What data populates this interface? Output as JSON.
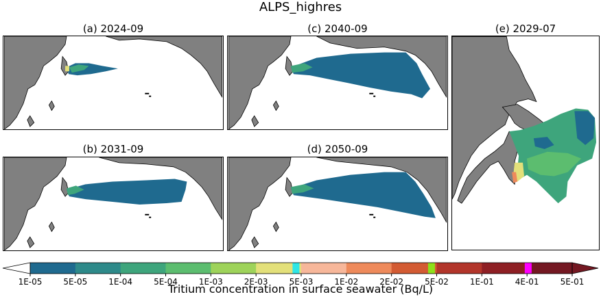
{
  "title": "ALPS_highres",
  "panels": [
    {
      "id": "a",
      "label": "(a) 2024-09"
    },
    {
      "id": "b",
      "label": "(b) 2031-09"
    },
    {
      "id": "c",
      "label": "(c) 2040-09"
    },
    {
      "id": "d",
      "label": "(d) 2050-09"
    },
    {
      "id": "e",
      "label": "(e) 2029-07"
    }
  ],
  "colorbar": {
    "label": "Tritium concentration in surface seawater (Bq/L)",
    "ticks": [
      "1E-05",
      "5E-05",
      "1E-04",
      "5E-04",
      "1E-03",
      "2E-03",
      "5E-03",
      "1E-02",
      "2E-02",
      "5E-02",
      "1E-01",
      "4E-01",
      "5E-01"
    ],
    "colors": [
      "#1f6a8f",
      "#2e8a8a",
      "#3ea57c",
      "#5cbd6f",
      "#9ed35a",
      "#e3e07a",
      "#f7b79a",
      "#ee8a5b",
      "#d35b33",
      "#b2352a",
      "#8e1f24",
      "#741822"
    ],
    "highlights": [
      "#2ee6e6",
      "#8ee01a",
      "#ff00ff"
    ],
    "extend": "both"
  },
  "colors": {
    "land": "#808080",
    "ocean": "#ffffff",
    "plume_main": "#1f6a8f",
    "plume_mid": "#3ea57c",
    "plume_high": "#e3e07a"
  }
}
